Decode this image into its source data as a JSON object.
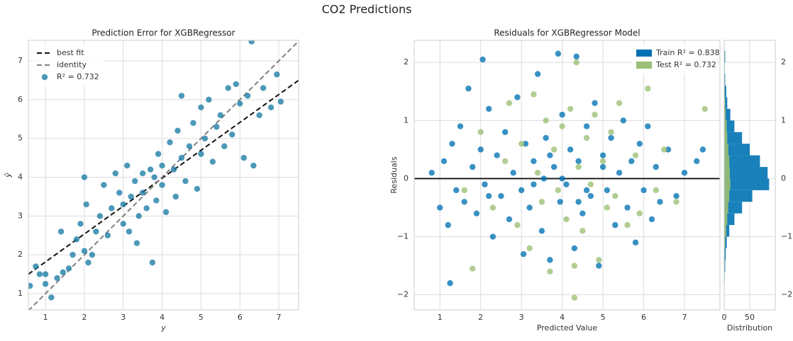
{
  "title": "CO2 Predictions",
  "chart_data": [
    {
      "type": "scatter",
      "title": "Prediction Error for XGBRegressor",
      "xlabel": "y",
      "ylabel": "ŷ",
      "xlim": [
        0.56,
        7.51
      ],
      "ylim": [
        0.58,
        7.53
      ],
      "xticks": [
        1,
        2,
        3,
        4,
        5,
        6,
        7
      ],
      "yticks": [
        1,
        2,
        3,
        4,
        5,
        6,
        7
      ],
      "grid": true,
      "legend": "upper left",
      "series": [
        {
          "name": "best fit",
          "color": "#111111",
          "linestyle": "dashed",
          "x": [
            0.56,
            7.51
          ],
          "values": [
            1.5,
            6.5
          ]
        },
        {
          "name": "identity",
          "color": "#808080",
          "linestyle": "dashed",
          "x": [
            0.56,
            7.51
          ],
          "values": [
            0.56,
            7.51
          ]
        },
        {
          "name": "R² = 0.732",
          "color": "#1a7ba5",
          "x": [
            0.6,
            0.75,
            0.85,
            1.0,
            1.0,
            1.15,
            1.3,
            1.4,
            1.45,
            1.6,
            1.7,
            1.8,
            1.9,
            2.0,
            2.0,
            2.05,
            2.1,
            2.2,
            2.3,
            2.4,
            2.5,
            2.6,
            2.7,
            2.8,
            2.9,
            3.0,
            3.0,
            3.1,
            3.15,
            3.2,
            3.3,
            3.35,
            3.4,
            3.5,
            3.5,
            3.6,
            3.7,
            3.75,
            3.8,
            3.85,
            3.9,
            4.0,
            4.0,
            4.1,
            4.2,
            4.3,
            4.35,
            4.4,
            4.5,
            4.5,
            4.6,
            4.7,
            4.8,
            4.9,
            5.0,
            5.0,
            5.1,
            5.2,
            5.3,
            5.4,
            5.5,
            5.6,
            5.7,
            5.8,
            5.9,
            6.0,
            6.1,
            6.2,
            6.3,
            6.35,
            6.5,
            6.6,
            6.8,
            6.95,
            7.05
          ],
          "values": [
            1.2,
            1.7,
            1.5,
            1.25,
            1.5,
            0.9,
            1.4,
            2.6,
            1.55,
            1.65,
            2.0,
            2.4,
            2.8,
            2.1,
            4.0,
            3.3,
            1.8,
            2.0,
            2.6,
            3.0,
            3.8,
            2.5,
            3.2,
            4.1,
            3.6,
            2.8,
            3.3,
            4.3,
            2.6,
            3.5,
            3.9,
            2.3,
            3.0,
            4.1,
            3.6,
            3.2,
            4.2,
            1.8,
            4.0,
            3.4,
            4.6,
            3.8,
            4.3,
            3.1,
            4.9,
            4.2,
            3.5,
            5.2,
            4.5,
            6.1,
            3.9,
            4.8,
            5.4,
            3.7,
            4.6,
            5.8,
            5.0,
            6.0,
            4.4,
            5.3,
            5.6,
            4.8,
            6.3,
            5.1,
            6.4,
            5.9,
            4.5,
            6.1,
            7.5,
            4.3,
            5.6,
            6.3,
            5.8,
            6.65,
            5.95
          ]
        }
      ]
    },
    {
      "type": "scatter",
      "title": "Residuals for XGBRegressor Model",
      "xlabel": "Predicted Value",
      "ylabel": "Residuals",
      "xlim": [
        0.37,
        7.87
      ],
      "ylim": [
        -2.26,
        2.38
      ],
      "xticks": [
        1,
        2,
        3,
        4,
        5,
        6,
        7
      ],
      "yticks": [
        {
          "value": -2,
          "label": "−2"
        },
        {
          "value": -1,
          "label": "−1"
        },
        0,
        1,
        2
      ],
      "grid": true,
      "legend": "upper right",
      "legend_marker": "patch",
      "hlines": [
        0
      ],
      "series": [
        {
          "name": "Train R² = 0.838",
          "color": "#0072b2",
          "x": [
            0.8,
            1.0,
            1.1,
            1.2,
            1.25,
            1.3,
            1.4,
            1.5,
            1.6,
            1.7,
            1.8,
            1.9,
            2.0,
            2.05,
            2.1,
            2.2,
            2.3,
            2.4,
            2.5,
            2.6,
            2.7,
            2.8,
            2.9,
            3.0,
            3.05,
            3.1,
            3.2,
            3.3,
            3.4,
            3.5,
            3.55,
            3.6,
            3.7,
            3.8,
            3.9,
            3.95,
            4.0,
            4.1,
            4.2,
            4.3,
            4.35,
            4.4,
            4.5,
            4.6,
            4.7,
            4.8,
            4.9,
            5.0,
            5.1,
            5.2,
            5.3,
            5.4,
            5.5,
            5.6,
            5.7,
            5.8,
            5.9,
            6.0,
            6.1,
            6.2,
            6.3,
            6.4,
            6.6,
            6.8,
            7.0,
            7.3,
            7.45,
            2.2,
            3.3,
            4.0,
            4.6,
            5.0,
            3.7,
            4.4
          ],
          "values": [
            0.1,
            -0.5,
            0.3,
            -0.8,
            -1.8,
            0.6,
            -0.2,
            0.9,
            -0.4,
            1.55,
            0.2,
            -0.6,
            0.5,
            2.05,
            -0.1,
            1.2,
            -1.0,
            0.4,
            -0.3,
            0.8,
            -0.7,
            0.1,
            1.4,
            -0.2,
            -1.3,
            0.6,
            -0.5,
            0.3,
            1.8,
            -0.9,
            0.0,
            0.7,
            -1.4,
            0.2,
            2.15,
            -0.4,
            1.1,
            -0.1,
            0.5,
            -1.2,
            2.1,
            0.3,
            -0.6,
            0.9,
            -0.3,
            1.3,
            -1.5,
            0.4,
            -0.2,
            0.7,
            -0.8,
            0.1,
            1.0,
            -0.5,
            0.3,
            -1.1,
            0.6,
            -0.2,
            0.9,
            -0.7,
            0.2,
            -0.4,
            0.5,
            -0.3,
            0.1,
            0.3,
            0.5,
            -0.3,
            -0.1,
            0.0,
            -0.2,
            0.2,
            0.4,
            -0.4
          ]
        },
        {
          "name": "Test R² = 0.732",
          "color": "#9bbf74",
          "x": [
            1.6,
            2.0,
            2.3,
            2.6,
            2.7,
            2.9,
            3.0,
            3.2,
            3.3,
            3.4,
            3.5,
            3.6,
            3.7,
            3.8,
            3.9,
            4.0,
            4.1,
            4.2,
            4.3,
            4.35,
            4.4,
            4.5,
            4.6,
            4.7,
            4.8,
            4.9,
            5.0,
            5.1,
            5.2,
            5.3,
            5.4,
            5.6,
            5.8,
            5.9,
            6.1,
            6.3,
            6.5,
            6.8,
            7.5,
            4.3,
            1.8
          ],
          "values": [
            -0.2,
            0.8,
            -0.5,
            0.3,
            1.3,
            -0.8,
            0.6,
            -1.2,
            1.45,
            0.1,
            -0.4,
            1.0,
            -1.6,
            0.5,
            -0.2,
            0.9,
            -0.7,
            1.2,
            -1.5,
            2.0,
            0.2,
            -0.9,
            0.7,
            -0.1,
            1.1,
            -1.4,
            0.3,
            -0.5,
            0.8,
            -0.3,
            1.3,
            -0.8,
            0.4,
            -0.6,
            1.55,
            -0.2,
            0.5,
            -0.4,
            1.2,
            -2.05,
            -1.55
          ]
        }
      ]
    },
    {
      "type": "histogram",
      "orientation": "horizontal",
      "xlabel": "Distribution",
      "yaxis_side": "right",
      "xlim": [
        0,
        100
      ],
      "ylim": [
        -2.26,
        2.38
      ],
      "xticks": [
        0,
        50
      ],
      "yticks": [
        {
          "value": -2,
          "label": "−2"
        },
        {
          "value": -1,
          "label": "−1"
        },
        0,
        1,
        2
      ],
      "grid": true,
      "bins": [
        -1.8,
        -1.6,
        -1.4,
        -1.2,
        -1.0,
        -0.8,
        -0.6,
        -0.4,
        -0.2,
        0.0,
        0.2,
        0.4,
        0.6,
        0.8,
        1.0,
        1.2,
        1.4,
        1.6,
        1.8,
        2.0,
        2.2
      ],
      "series": [
        {
          "color": "#0072b2",
          "values": [
            1,
            2,
            3,
            5,
            10,
            20,
            35,
            55,
            88,
            85,
            70,
            50,
            35,
            20,
            12,
            6,
            4,
            2,
            1,
            2
          ]
        },
        {
          "color": "#9bbf74",
          "values": [
            0,
            1,
            1,
            2,
            4,
            6,
            8,
            10,
            12,
            11,
            10,
            8,
            6,
            5,
            3,
            2,
            1,
            1,
            0,
            1
          ]
        }
      ]
    }
  ]
}
